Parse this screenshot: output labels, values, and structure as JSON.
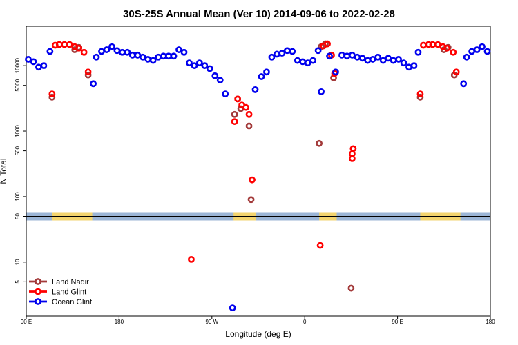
{
  "chart_data": {
    "type": "scatter",
    "title": "30S-25S Annual Mean (Ver 10)   2014-09-06 to 2022-02-28",
    "xlabel": "Longitude (deg E)",
    "ylabel": "N Total",
    "x_ticks": [
      {
        "value": 90,
        "label": "90 E"
      },
      {
        "value": 180,
        "label": "180"
      },
      {
        "value": 270,
        "label": "90 W"
      },
      {
        "value": 360,
        "label": "0"
      },
      {
        "value": 450,
        "label": "90 E"
      },
      {
        "value": 540,
        "label": "180"
      }
    ],
    "xlim": [
      90,
      540
    ],
    "y_scale": "log",
    "ylim": [
      1.5,
      40000
    ],
    "y_ticks": [
      {
        "value": 5,
        "label": "5"
      },
      {
        "value": 10,
        "label": "10"
      },
      {
        "value": 50,
        "label": "50"
      },
      {
        "value": 100,
        "label": "100"
      },
      {
        "value": 500,
        "label": "500"
      },
      {
        "value": 1000,
        "label": "1000"
      },
      {
        "value": 5000,
        "label": "5000"
      },
      {
        "value": 10000,
        "label": "10000"
      }
    ],
    "land_band": {
      "y_value": 50,
      "water_color": "#9bb5d6",
      "land_color": "#f3d46e",
      "land_segments": [
        [
          115,
          154
        ],
        [
          291,
          313
        ],
        [
          374,
          391
        ],
        [
          472,
          511
        ]
      ]
    },
    "series": [
      {
        "name": "Land Nadir",
        "color": "#a33a3a",
        "points": [
          [
            115,
            3300
          ],
          [
            137,
            17500
          ],
          [
            141,
            19000
          ],
          [
            150,
            7200
          ],
          [
            292,
            1800
          ],
          [
            295,
            3100
          ],
          [
            298,
            2200
          ],
          [
            306,
            1200
          ],
          [
            308,
            90
          ],
          [
            374,
            650
          ],
          [
            376,
            19500
          ],
          [
            380,
            21500
          ],
          [
            388,
            6500
          ],
          [
            405,
            4
          ],
          [
            472,
            3300
          ],
          [
            495,
            17500
          ],
          [
            499,
            19000
          ],
          [
            505,
            7200
          ]
        ]
      },
      {
        "name": "Land Glint",
        "color": "#ff0000",
        "points": [
          [
            115,
            3700
          ],
          [
            118,
            20500
          ],
          [
            122,
            21000
          ],
          [
            127,
            21000
          ],
          [
            132,
            21000
          ],
          [
            137,
            19500
          ],
          [
            141,
            18500
          ],
          [
            146,
            16000
          ],
          [
            150,
            8000
          ],
          [
            250,
            11
          ],
          [
            292,
            1400
          ],
          [
            295,
            3100
          ],
          [
            299,
            2500
          ],
          [
            303,
            2300
          ],
          [
            306,
            1800
          ],
          [
            309,
            180
          ],
          [
            375,
            18
          ],
          [
            378,
            20000
          ],
          [
            382,
            21500
          ],
          [
            386,
            14500
          ],
          [
            389,
            7600
          ],
          [
            406,
            380
          ],
          [
            406,
            450
          ],
          [
            407,
            540
          ],
          [
            472,
            3700
          ],
          [
            475,
            20500
          ],
          [
            480,
            21000
          ],
          [
            484,
            21000
          ],
          [
            489,
            21000
          ],
          [
            494,
            19500
          ],
          [
            498,
            18500
          ],
          [
            504,
            16000
          ],
          [
            507,
            8000
          ]
        ]
      },
      {
        "name": "Ocean Glint",
        "color": "#0000ee",
        "points": [
          [
            92,
            12500
          ],
          [
            97,
            11500
          ],
          [
            102,
            9500
          ],
          [
            107,
            10000
          ],
          [
            113,
            16500
          ],
          [
            155,
            5300
          ],
          [
            158,
            13500
          ],
          [
            163,
            16500
          ],
          [
            168,
            17500
          ],
          [
            173,
            19500
          ],
          [
            178,
            17000
          ],
          [
            183,
            16000
          ],
          [
            188,
            16000
          ],
          [
            193,
            14500
          ],
          [
            198,
            14500
          ],
          [
            203,
            13500
          ],
          [
            208,
            12500
          ],
          [
            213,
            12000
          ],
          [
            218,
            13500
          ],
          [
            223,
            14000
          ],
          [
            228,
            14000
          ],
          [
            233,
            14000
          ],
          [
            238,
            17500
          ],
          [
            243,
            16000
          ],
          [
            248,
            11000
          ],
          [
            253,
            10000
          ],
          [
            258,
            11000
          ],
          [
            263,
            10000
          ],
          [
            268,
            9000
          ],
          [
            273,
            7000
          ],
          [
            278,
            6000
          ],
          [
            283,
            3700
          ],
          [
            290,
            2
          ],
          [
            312,
            4300
          ],
          [
            318,
            6800
          ],
          [
            323,
            8000
          ],
          [
            328,
            13500
          ],
          [
            333,
            15000
          ],
          [
            338,
            15500
          ],
          [
            343,
            17000
          ],
          [
            348,
            16500
          ],
          [
            353,
            12000
          ],
          [
            358,
            11500
          ],
          [
            363,
            11000
          ],
          [
            368,
            12000
          ],
          [
            373,
            17000
          ],
          [
            376,
            4000
          ],
          [
            384,
            14000
          ],
          [
            390,
            8000
          ],
          [
            396,
            14500
          ],
          [
            401,
            14000
          ],
          [
            406,
            14500
          ],
          [
            411,
            13500
          ],
          [
            416,
            13000
          ],
          [
            421,
            12000
          ],
          [
            426,
            12500
          ],
          [
            431,
            13500
          ],
          [
            436,
            12000
          ],
          [
            441,
            13000
          ],
          [
            446,
            12000
          ],
          [
            451,
            12500
          ],
          [
            456,
            11000
          ],
          [
            461,
            9500
          ],
          [
            466,
            10000
          ],
          [
            470,
            16000
          ],
          [
            514,
            5300
          ],
          [
            517,
            13500
          ],
          [
            522,
            16500
          ],
          [
            527,
            17500
          ],
          [
            532,
            19500
          ],
          [
            537,
            16500
          ]
        ]
      }
    ]
  }
}
